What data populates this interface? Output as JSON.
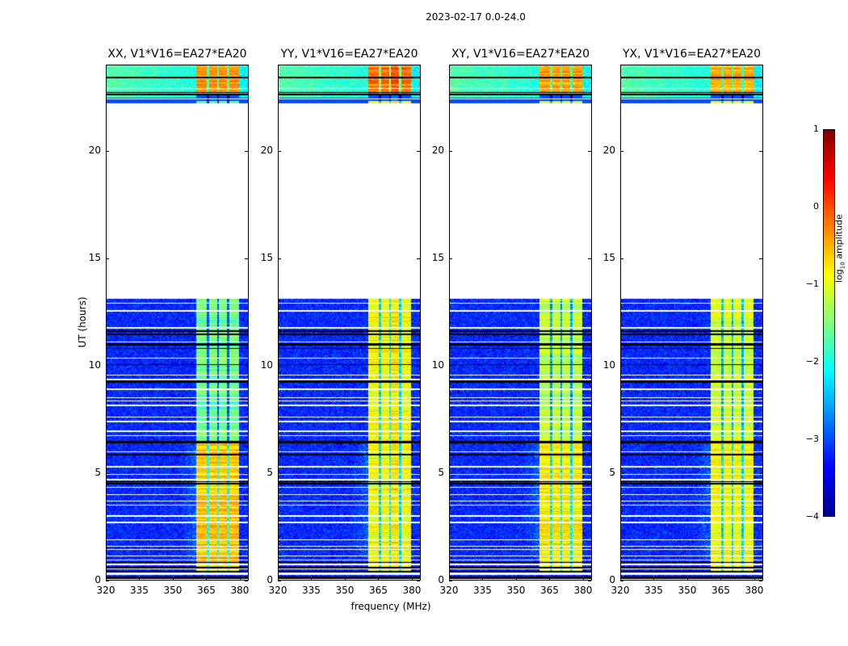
{
  "chart_data": {
    "type": "heatmap",
    "title": "2023-02-17 0.0-24.0",
    "xlabel": "frequency (MHz)",
    "ylabel": "UT (hours)",
    "xlim": [
      320,
      384
    ],
    "ylim": [
      0,
      24
    ],
    "xticks": [
      "320",
      "335",
      "350",
      "365",
      "380"
    ],
    "xtick_values": [
      320,
      335,
      350,
      365,
      380
    ],
    "yticks": [
      "0",
      "5",
      "10",
      "15",
      "20"
    ],
    "ytick_values": [
      0,
      5,
      10,
      15,
      20
    ],
    "no_data_range_hours": [
      13.1,
      22.2
    ],
    "rfi_band_mhz": [
      360.5,
      379.5
    ],
    "panels": [
      {
        "title": "XX, V1*V16=EA27*EA20",
        "band_level_early": -0.6,
        "band_level_late": -1.6,
        "band_level_top": -0.4
      },
      {
        "title": "YY, V1*V16=EA27*EA20",
        "band_level_early": -0.9,
        "band_level_late": -0.9,
        "band_level_top": -0.2
      },
      {
        "title": "XY, V1*V16=EA27*EA20",
        "band_level_early": -0.8,
        "band_level_late": -1.2,
        "band_level_top": -0.4
      },
      {
        "title": "YX, V1*V16=EA27*EA20",
        "band_level_early": -0.9,
        "band_level_late": -1.1,
        "band_level_top": -0.5
      }
    ],
    "background_level": -3.2,
    "colorbar": {
      "label": "log10 amplitude",
      "label_main": "log",
      "label_sub": "10",
      "label_rest": " amplitude",
      "ticks": [
        "1",
        "0",
        "−1",
        "−2",
        "−3",
        "−4"
      ],
      "tick_values": [
        1,
        0,
        -1,
        -2,
        -3,
        -4
      ],
      "range": [
        -4,
        1
      ],
      "colormap": "jet"
    }
  }
}
